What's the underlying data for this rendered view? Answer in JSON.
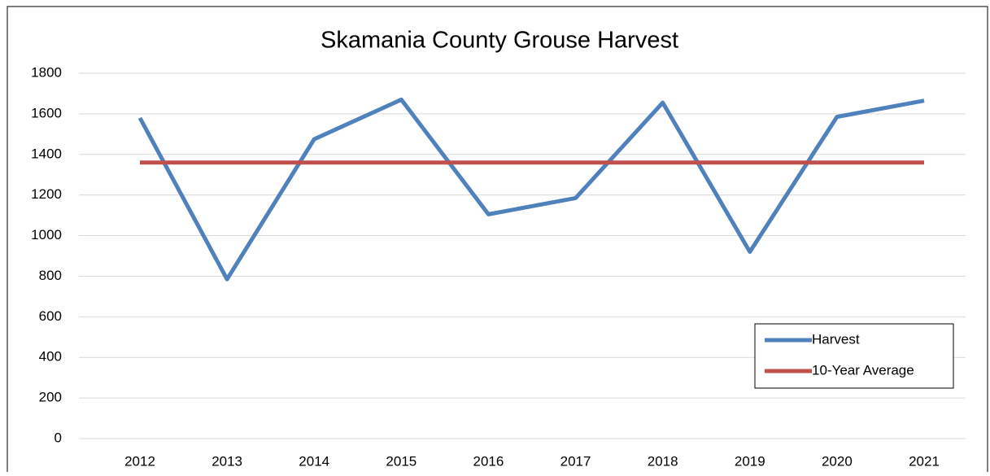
{
  "chart_data": {
    "type": "line",
    "title": "Skamania County Grouse Harvest",
    "categories": [
      "2012",
      "2013",
      "2014",
      "2015",
      "2016",
      "2017",
      "2018",
      "2019",
      "2020",
      "2021"
    ],
    "series": [
      {
        "name": "Harvest",
        "color": "#4f81bd",
        "values": [
          1580,
          785,
          1475,
          1670,
          1105,
          1185,
          1655,
          920,
          1585,
          1665
        ]
      },
      {
        "name": "10-Year Average",
        "color": "#c0504d",
        "values": [
          1360,
          1360,
          1360,
          1360,
          1360,
          1360,
          1360,
          1360,
          1360,
          1360
        ]
      }
    ],
    "ylim": [
      0,
      1800
    ],
    "yticks": [
      0,
      200,
      400,
      600,
      800,
      1000,
      1200,
      1400,
      1600,
      1800
    ],
    "grid": true,
    "legend": "lower right"
  }
}
